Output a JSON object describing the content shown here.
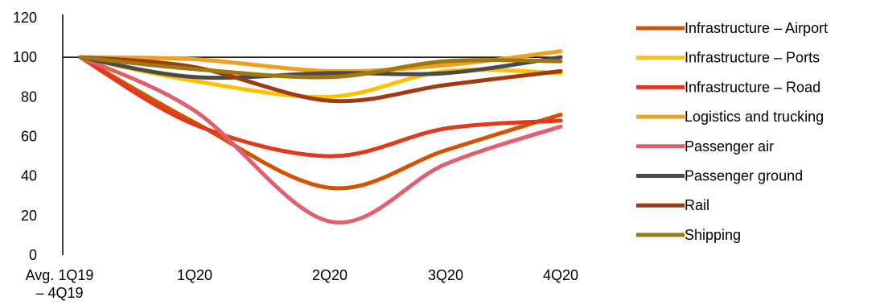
{
  "chart_data": {
    "type": "line",
    "categories": [
      "Avg. 1Q19 – 4Q19",
      "1Q20",
      "2Q20",
      "3Q20",
      "4Q20"
    ],
    "ylim": [
      0,
      120
    ],
    "yticks": [
      0,
      20,
      40,
      60,
      80,
      100,
      120
    ],
    "reference_line": 100,
    "legend_position": "right",
    "series": [
      {
        "name": "Infrastructure – Airport",
        "color": "#D35400",
        "values": [
          100,
          67,
          34,
          53,
          71
        ]
      },
      {
        "name": "Infrastructure – Ports",
        "color": "#FFC000",
        "values": [
          100,
          88,
          80,
          93,
          92
        ]
      },
      {
        "name": "Infrastructure – Road",
        "color": "#E03A1E",
        "values": [
          100,
          66,
          50,
          64,
          68
        ]
      },
      {
        "name": "Logistics and trucking",
        "color": "#F0A020",
        "values": [
          100,
          99,
          93,
          96,
          103
        ]
      },
      {
        "name": "Passenger air",
        "color": "#E06070",
        "values": [
          100,
          73,
          17,
          46,
          65
        ]
      },
      {
        "name": "Passenger ground",
        "color": "#4A4A4A",
        "values": [
          100,
          90,
          92,
          92,
          100
        ]
      },
      {
        "name": "Rail",
        "color": "#A03A10",
        "values": [
          100,
          95,
          78,
          86,
          93
        ]
      },
      {
        "name": "Shipping",
        "color": "#A07810",
        "values": [
          100,
          94,
          90,
          98,
          98
        ]
      }
    ]
  }
}
